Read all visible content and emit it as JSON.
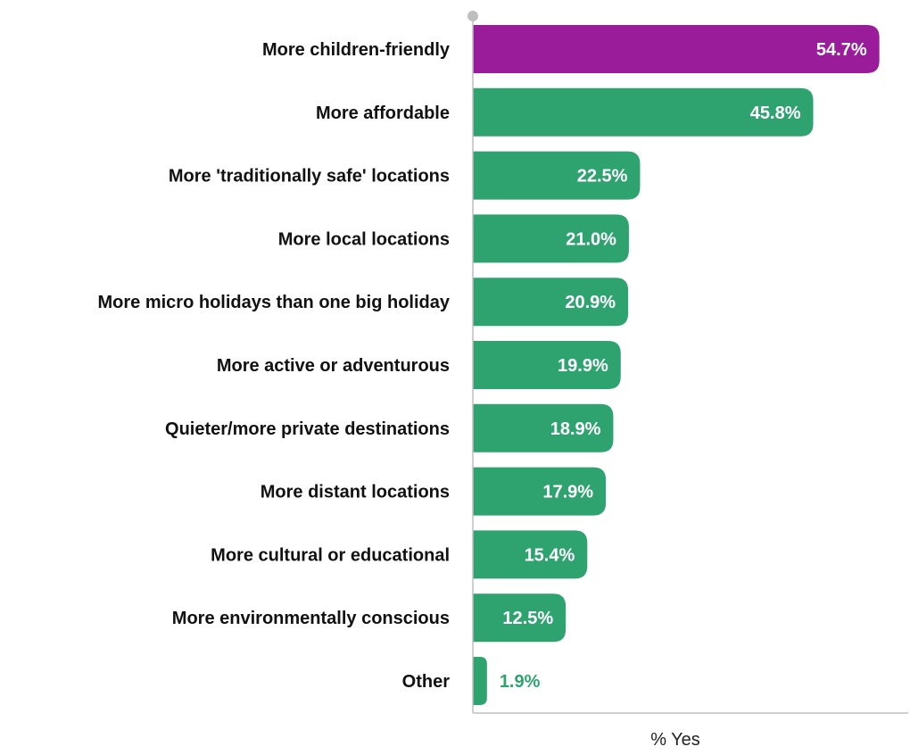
{
  "chart_data": {
    "type": "bar",
    "orientation": "horizontal",
    "categories": [
      "More children-friendly",
      "More affordable",
      "More 'traditionally safe' locations",
      "More local locations",
      "More micro holidays than one big holiday",
      "More active or adventurous",
      "Quieter/more private destinations",
      "More distant locations",
      "More cultural or educational",
      "More environmentally conscious",
      "Other"
    ],
    "values": [
      54.7,
      45.8,
      22.5,
      21.0,
      20.9,
      19.9,
      18.9,
      17.9,
      15.4,
      12.5,
      1.9
    ],
    "value_labels": [
      "54.7%",
      "45.8%",
      "22.5%",
      "21.0%",
      "20.9%",
      "19.9%",
      "18.9%",
      "17.9%",
      "15.4%",
      "12.5%",
      "1.9%"
    ],
    "highlight_index": 0,
    "xlabel": "% Yes",
    "ylabel": "",
    "title": "",
    "xlim": [
      0,
      60
    ],
    "grid": false,
    "legend": "none",
    "colors": {
      "highlight": "#9b1c9b",
      "default": "#2ea36f",
      "axis": "#bfbfbf",
      "label_inside": "#ffffff",
      "label_outside": "#2ea36f"
    }
  }
}
